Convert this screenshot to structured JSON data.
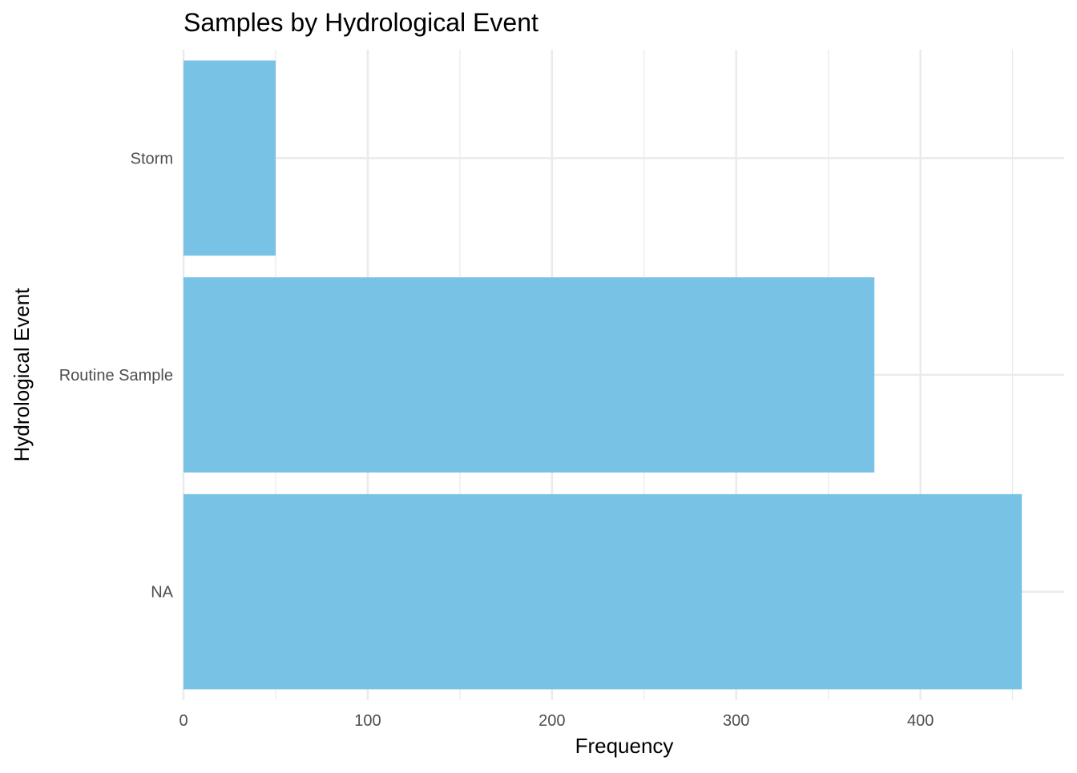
{
  "chart_data": {
    "type": "bar",
    "orientation": "horizontal",
    "title": "Samples by Hydrological Event",
    "xlabel": "Frequency",
    "ylabel": "Hydrological Event",
    "categories": [
      "NA",
      "Routine Sample",
      "Storm"
    ],
    "values": [
      455,
      375,
      50
    ],
    "xlim": [
      0,
      478
    ],
    "x_ticks": [
      0,
      100,
      200,
      300,
      400
    ],
    "x_tick_labels": [
      "0",
      "100",
      "200",
      "300",
      "400"
    ],
    "bar_color": "#78C2E5",
    "grid": true,
    "legend": "none"
  }
}
